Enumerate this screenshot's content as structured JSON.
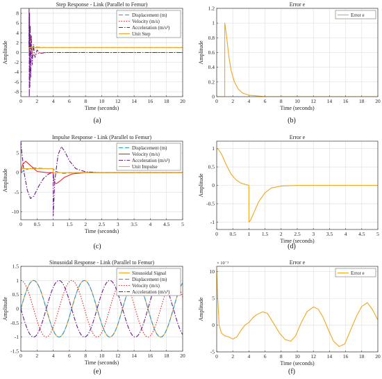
{
  "figure": {
    "panel_labels": [
      "(a)",
      "(b)",
      "(c)",
      "(d)",
      "(e)",
      "(f)"
    ]
  },
  "colors": {
    "displacement": "#1f9bd6",
    "velocity": "#e8262a",
    "acceleration": "#6a1a8a",
    "reference": "#f2a51c",
    "error": "#f2a51c",
    "grid": "#dedede",
    "axis": "#333333"
  },
  "chart_data": [
    {
      "id": "a",
      "type": "line",
      "title": "Step Response - Link (Parallel to Femur)",
      "xlabel": "Time (seconds)",
      "ylabel": "Amplitude",
      "xlim": [
        0,
        20
      ],
      "ylim": [
        -9,
        9
      ],
      "xticks": [
        0,
        2,
        4,
        6,
        8,
        10,
        12,
        14,
        16,
        18,
        20
      ],
      "yticks": [
        -8,
        -6,
        -4,
        -2,
        0,
        2,
        4,
        6,
        8
      ],
      "grid": true,
      "legend": "top-right",
      "series": [
        {
          "name": "Displacement (m)",
          "style": "dashed",
          "x": [
            0,
            1,
            1.1,
            1.3,
            1.6,
            2,
            2.5,
            3,
            4,
            6,
            20
          ],
          "y": [
            0,
            0,
            0.3,
            0.95,
            1.25,
            1.1,
            1.02,
            1.0,
            1.0,
            1.0,
            1.0
          ]
        },
        {
          "name": "Velocity (m/s)",
          "style": "dotted",
          "x": [
            0,
            1,
            1.05,
            1.15,
            1.3,
            1.5,
            1.8,
            2.2,
            2.8,
            3.5,
            20
          ],
          "y": [
            0,
            0,
            6.0,
            3.5,
            1.0,
            -0.6,
            -0.4,
            -0.15,
            -0.05,
            0,
            0
          ]
        },
        {
          "name": "Acceleration (m/s²)",
          "style": "dashdot",
          "x": [
            0,
            1,
            1.02,
            1.05,
            1.08,
            1.12,
            1.16,
            1.22,
            1.3,
            1.4,
            1.55,
            1.75,
            2.0,
            2.4,
            3,
            20
          ],
          "y": [
            0,
            0,
            9,
            -9,
            8,
            -7,
            5.5,
            -5,
            3.5,
            -2.5,
            1.6,
            -1.0,
            0.5,
            -0.2,
            0,
            0
          ]
        },
        {
          "name": "Unit Step",
          "style": "solid",
          "x": [
            0,
            1,
            1,
            20
          ],
          "y": [
            0,
            0,
            1,
            1
          ]
        }
      ]
    },
    {
      "id": "b",
      "type": "line",
      "title": "Error e",
      "xlabel": "Time (seconds)",
      "ylabel": "Amplitude",
      "xlim": [
        0,
        20
      ],
      "ylim": [
        0,
        1.2
      ],
      "xticks": [
        0,
        2,
        4,
        6,
        8,
        10,
        12,
        14,
        16,
        18,
        20
      ],
      "yticks": [
        0,
        0.2,
        0.4,
        0.6,
        0.8,
        1,
        1.2
      ],
      "grid": true,
      "legend": "top-right",
      "series": [
        {
          "name": "Error e",
          "style": "solid",
          "x": [
            0,
            1,
            1,
            1.2,
            1.5,
            1.8,
            2.2,
            2.7,
            3.2,
            4,
            5,
            6,
            20
          ],
          "y": [
            0,
            0,
            1.0,
            0.85,
            0.55,
            0.35,
            0.2,
            0.1,
            0.05,
            0.02,
            0.01,
            0,
            0
          ]
        }
      ]
    },
    {
      "id": "c",
      "type": "line",
      "title": "Impulse Response - Link (Parallel to Femur)",
      "xlabel": "Time (seconds)",
      "ylabel": "Amplitude",
      "xlim": [
        0,
        5
      ],
      "ylim": [
        -12,
        8
      ],
      "xticks": [
        0,
        0.5,
        1,
        1.5,
        2,
        2.5,
        3,
        3.5,
        4,
        4.5,
        5
      ],
      "yticks": [
        -10,
        -5,
        0,
        5
      ],
      "grid": true,
      "legend": "top-right",
      "series": [
        {
          "name": "Displacement (m)",
          "style": "dashed",
          "x": [
            0,
            0.1,
            0.25,
            0.4,
            0.6,
            0.8,
            1.0,
            1.05,
            1.15,
            1.3,
            1.5,
            1.8,
            2.2,
            5
          ],
          "y": [
            0,
            0.6,
            1.0,
            1.2,
            1.1,
            1.0,
            1.0,
            0.5,
            0.1,
            -0.2,
            -0.1,
            0,
            0,
            0
          ]
        },
        {
          "name": "Velocity (m/s)",
          "style": "solid",
          "x": [
            0,
            0.05,
            0.15,
            0.3,
            0.5,
            0.8,
            1.0,
            1.03,
            1.1,
            1.2,
            1.35,
            1.6,
            2.0,
            2.5,
            5
          ],
          "y": [
            0,
            2.0,
            2.9,
            1.8,
            0.3,
            0,
            0,
            -2.5,
            -2.8,
            -2.2,
            -1.2,
            -0.3,
            0,
            0,
            0
          ]
        },
        {
          "name": "Acceleration (m/s²)",
          "style": "dashdot",
          "x": [
            0,
            0.02,
            0.1,
            0.2,
            0.3,
            0.4,
            0.55,
            0.7,
            0.85,
            0.95,
            1.0,
            1.0,
            1.05,
            1.15,
            1.25,
            1.35,
            1.5,
            1.7,
            2.0,
            2.5,
            5
          ],
          "y": [
            8,
            6,
            0,
            -4.5,
            -6.6,
            -6.0,
            -3.5,
            -1.5,
            -0.4,
            0,
            0,
            -11,
            -2,
            4.5,
            6.6,
            5.5,
            3.0,
            1.0,
            0.2,
            0,
            0
          ]
        },
        {
          "name": "Unit Impulse",
          "style": "solid-reference",
          "x": [
            0,
            1.0,
            1.0,
            5
          ],
          "y": [
            1,
            1,
            0,
            0
          ]
        }
      ]
    },
    {
      "id": "d",
      "type": "line",
      "title": "Error e",
      "xlabel": "Time (seconds)",
      "ylabel": "Amplitude",
      "xlim": [
        0,
        5
      ],
      "ylim": [
        -1.2,
        1.2
      ],
      "xticks": [
        0,
        0.5,
        1,
        1.5,
        2,
        2.5,
        3,
        3.5,
        4,
        4.5,
        5
      ],
      "yticks": [
        -1,
        -0.5,
        0,
        0.5,
        1
      ],
      "grid": true,
      "legend": "none",
      "series": [
        {
          "name": "",
          "style": "solid",
          "x": [
            0,
            0.05,
            0.15,
            0.3,
            0.45,
            0.6,
            0.75,
            0.9,
            1.0,
            1.0,
            1.05,
            1.15,
            1.3,
            1.5,
            1.7,
            2.0,
            2.5,
            5
          ],
          "y": [
            1.0,
            0.98,
            0.85,
            0.55,
            0.3,
            0.15,
            0.06,
            0.02,
            0,
            -1.0,
            -0.95,
            -0.75,
            -0.45,
            -0.2,
            -0.07,
            -0.02,
            0,
            0
          ]
        }
      ]
    },
    {
      "id": "e",
      "type": "line",
      "title": "Sinusoidal Response - Link (Parallel to Femur)",
      "xlabel": "Time (seconds)",
      "ylabel": "Amplitude",
      "xlim": [
        0,
        20
      ],
      "ylim": [
        -1.5,
        1.5
      ],
      "xticks": [
        0,
        2,
        4,
        6,
        8,
        10,
        12,
        14,
        16,
        18,
        20
      ],
      "yticks": [
        -1.5,
        -1,
        -0.5,
        0,
        0.5,
        1,
        1.5
      ],
      "grid": true,
      "legend": "top-right",
      "sinusoid": {
        "omega": 1.0,
        "t_end": 20,
        "samples": 200
      },
      "series": [
        {
          "name": "Sinusoidal Signal",
          "style": "solid",
          "func": "sin"
        },
        {
          "name": "Displacement (m)",
          "style": "dashed",
          "func": "sin"
        },
        {
          "name": "Velocity (m/s)",
          "style": "dotted",
          "func": "cos"
        },
        {
          "name": "Acceleration (m/s²)",
          "style": "dashdot",
          "func": "-sin"
        }
      ]
    },
    {
      "id": "f",
      "type": "line",
      "title": "Error e",
      "xlabel": "Time (seconds)",
      "ylabel": "Amplitude",
      "scale_label": "× 10⁻³",
      "xlim": [
        0,
        20
      ],
      "ylim": [
        -5,
        11
      ],
      "xticks": [
        0,
        2,
        4,
        6,
        8,
        10,
        12,
        14,
        16,
        18,
        20
      ],
      "yticks": [
        -5,
        0,
        5,
        10
      ],
      "grid": true,
      "legend": "top-right",
      "series": [
        {
          "name": "Error e",
          "style": "solid",
          "x": [
            0,
            0.1,
            0.3,
            0.6,
            1.0,
            1.5,
            2.0,
            2.5,
            3.0,
            3.5,
            4.0,
            4.5,
            5.0,
            5.7,
            6.3,
            7.0,
            7.8,
            8.5,
            9.2,
            9.8,
            10.5,
            11.2,
            12.0,
            12.6,
            13.2,
            13.9,
            14.5,
            15.2,
            15.9,
            16.6,
            17.3,
            18.0,
            18.7,
            19.3,
            20.0
          ],
          "y": [
            10.5,
            6.0,
            0.0,
            -1.5,
            -2.0,
            -2.2,
            -2.6,
            -2.2,
            -1.0,
            0.0,
            0.5,
            1.4,
            2.0,
            2.5,
            2.2,
            0.5,
            -1.5,
            -2.7,
            -3.0,
            -2.0,
            0.5,
            2.5,
            3.4,
            3.0,
            1.5,
            -1.0,
            -3.0,
            -4.0,
            -3.5,
            -1.0,
            1.5,
            3.5,
            4.2,
            3.0,
            1.0
          ]
        }
      ]
    }
  ]
}
